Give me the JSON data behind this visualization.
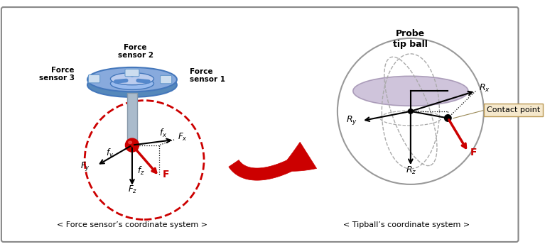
{
  "bg_color": "#ffffff",
  "border_color": "#888888",
  "left_caption": "< Force sensor’s coordinate system >",
  "right_caption": "< Tipball’s coordinate system >",
  "probe_label": "Probe\ntip ball",
  "contact_point_label": "Contact point",
  "red_color": "#cc0000",
  "circle_color": "#cc0000",
  "wheel_color_outer": "#6699cc",
  "wheel_color_inner": "#aabfdf",
  "wheel_color_top": "#88aadd",
  "stem_color": "#aabbcc",
  "disk_color": "#c0b0cf",
  "sphere_edge_color": "#999999"
}
